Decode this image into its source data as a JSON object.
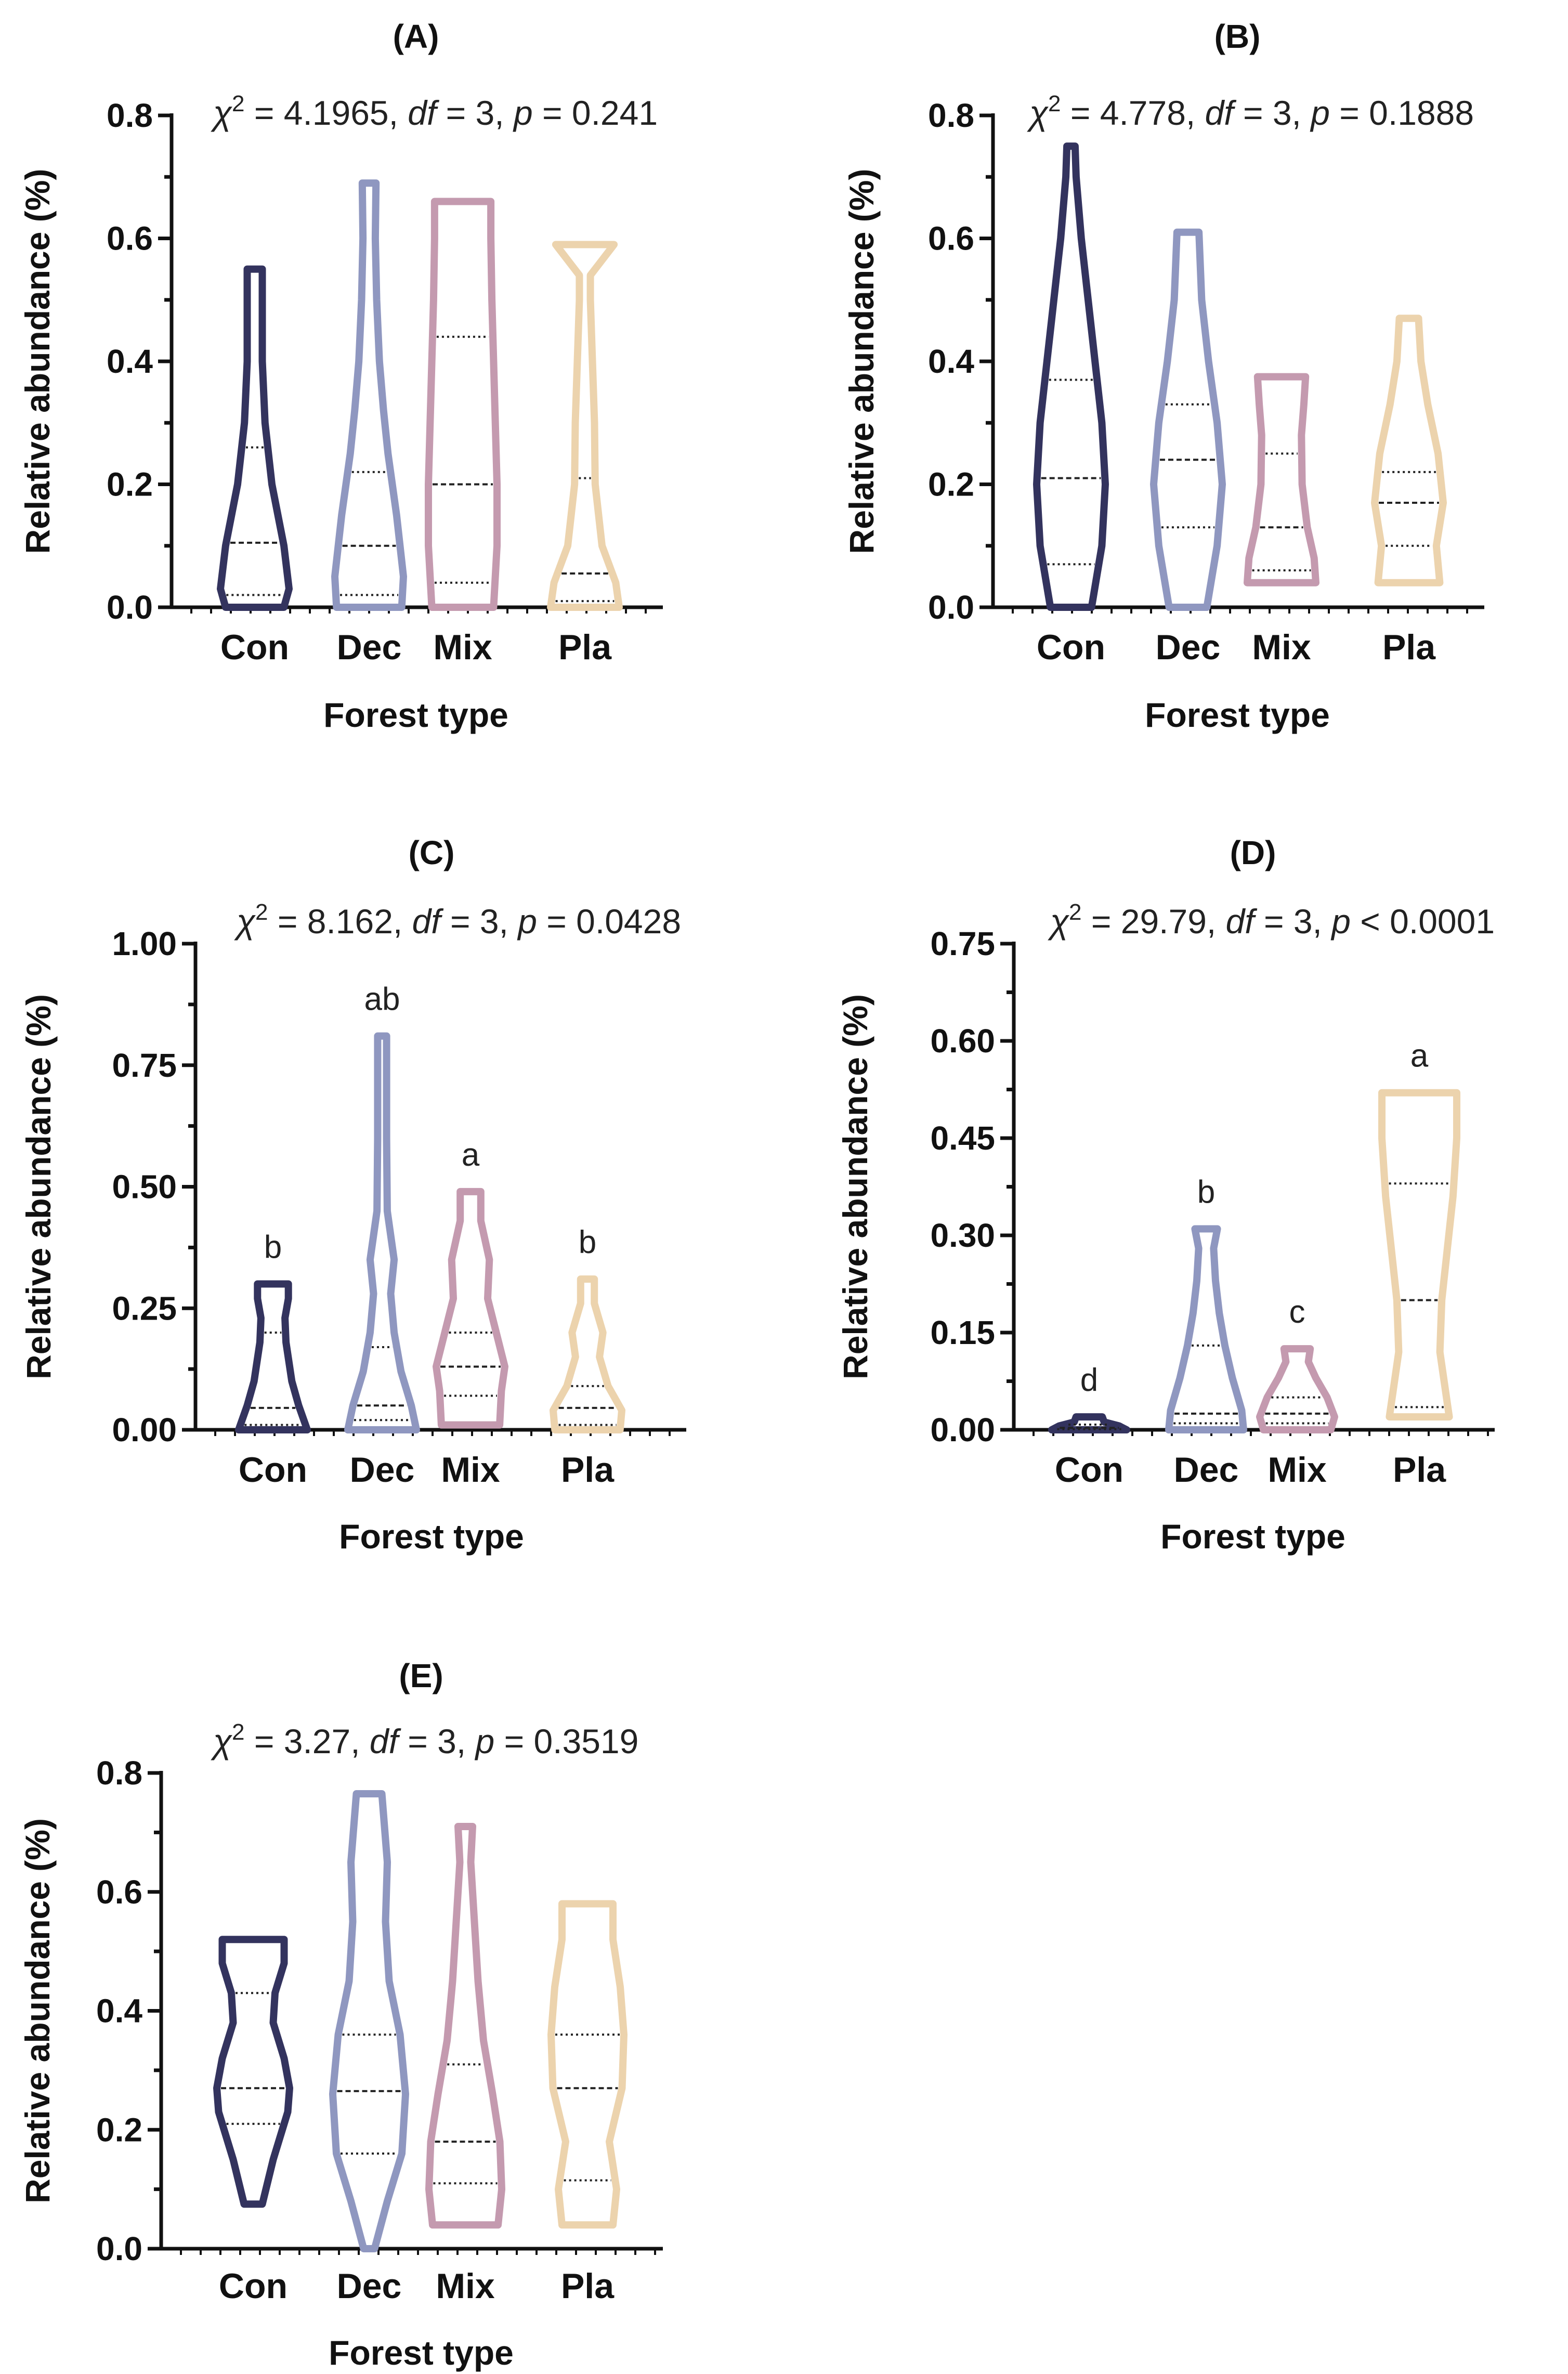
{
  "chart_data": [
    {
      "type": "violin",
      "panel": "(A)",
      "stat": {
        "chi": "χ",
        "chi_sup": "2",
        "chi_val": " = 4.1965, ",
        "df": "df",
        "df_val": " = 3, ",
        "p": "p",
        "p_val": " = 0.241"
      },
      "ylabel": "Relative abundance (%)",
      "xlabel": "Forest type",
      "ylim": [
        0,
        0.8
      ],
      "yticks": [
        "0.0",
        "0.2",
        "0.4",
        "0.6",
        "0.8"
      ],
      "categories": [
        "Con",
        "Dec",
        "Mix",
        "Pla"
      ],
      "series": [
        {
          "name": "Con",
          "min": 0.0,
          "max": 0.55,
          "q1": 0.02,
          "median": 0.105,
          "q3": 0.26,
          "shape": [
            [
              0.0,
              0.85
            ],
            [
              0.03,
              1.0
            ],
            [
              0.1,
              0.85
            ],
            [
              0.2,
              0.5
            ],
            [
              0.3,
              0.3
            ],
            [
              0.4,
              0.22
            ],
            [
              0.5,
              0.22
            ],
            [
              0.55,
              0.22
            ]
          ],
          "letter": ""
        },
        {
          "name": "Dec",
          "min": 0.0,
          "max": 0.69,
          "q1": 0.02,
          "median": 0.1,
          "q3": 0.22,
          "shape": [
            [
              0.0,
              0.95
            ],
            [
              0.05,
              1.0
            ],
            [
              0.15,
              0.8
            ],
            [
              0.25,
              0.55
            ],
            [
              0.32,
              0.42
            ],
            [
              0.4,
              0.3
            ],
            [
              0.5,
              0.22
            ],
            [
              0.6,
              0.18
            ],
            [
              0.69,
              0.2
            ]
          ],
          "letter": ""
        },
        {
          "name": "Mix",
          "min": 0.0,
          "max": 0.66,
          "q1": 0.04,
          "median": 0.2,
          "q3": 0.44,
          "shape": [
            [
              0.0,
              0.9
            ],
            [
              0.1,
              1.0
            ],
            [
              0.2,
              1.0
            ],
            [
              0.3,
              0.95
            ],
            [
              0.4,
              0.9
            ],
            [
              0.5,
              0.85
            ],
            [
              0.6,
              0.82
            ],
            [
              0.66,
              0.82
            ]
          ],
          "letter": ""
        },
        {
          "name": "Pla",
          "min": 0.0,
          "max": 0.59,
          "q1": 0.01,
          "median": 0.055,
          "q3": 0.21,
          "shape": [
            [
              0.0,
              1.0
            ],
            [
              0.04,
              0.9
            ],
            [
              0.1,
              0.5
            ],
            [
              0.2,
              0.3
            ],
            [
              0.3,
              0.28
            ],
            [
              0.4,
              0.22
            ],
            [
              0.5,
              0.16
            ],
            [
              0.54,
              0.16
            ],
            [
              0.59,
              0.85
            ]
          ],
          "letter": ""
        }
      ]
    },
    {
      "type": "violin",
      "panel": "(B)",
      "stat": {
        "chi": "χ",
        "chi_sup": "2",
        "chi_val": " = 4.778, ",
        "df": "df",
        "df_val": " = 3, ",
        "p": "p",
        "p_val": " = 0.1888"
      },
      "ylabel": "Relative abundance (%)",
      "xlabel": "Forest type",
      "ylim": [
        0,
        0.8
      ],
      "yticks": [
        "0.0",
        "0.2",
        "0.4",
        "0.6",
        "0.8"
      ],
      "categories": [
        "Con",
        "Dec",
        "Mix",
        "Pla"
      ],
      "series": [
        {
          "name": "Con",
          "min": 0.0,
          "max": 0.75,
          "q1": 0.07,
          "median": 0.21,
          "q3": 0.37,
          "shape": [
            [
              0.0,
              0.6
            ],
            [
              0.1,
              0.9
            ],
            [
              0.2,
              1.0
            ],
            [
              0.3,
              0.9
            ],
            [
              0.4,
              0.7
            ],
            [
              0.5,
              0.5
            ],
            [
              0.6,
              0.3
            ],
            [
              0.7,
              0.15
            ],
            [
              0.75,
              0.12
            ]
          ],
          "letter": ""
        },
        {
          "name": "Dec",
          "min": 0.0,
          "max": 0.61,
          "q1": 0.13,
          "median": 0.24,
          "q3": 0.33,
          "shape": [
            [
              0.0,
              0.55
            ],
            [
              0.1,
              0.85
            ],
            [
              0.2,
              1.0
            ],
            [
              0.3,
              0.85
            ],
            [
              0.4,
              0.6
            ],
            [
              0.5,
              0.4
            ],
            [
              0.61,
              0.32
            ]
          ],
          "letter": ""
        },
        {
          "name": "Mix",
          "min": 0.04,
          "max": 0.375,
          "q1": 0.06,
          "median": 0.13,
          "q3": 0.25,
          "shape": [
            [
              0.04,
              1.0
            ],
            [
              0.08,
              0.95
            ],
            [
              0.13,
              0.75
            ],
            [
              0.2,
              0.6
            ],
            [
              0.28,
              0.58
            ],
            [
              0.33,
              0.65
            ],
            [
              0.375,
              0.7
            ]
          ],
          "letter": ""
        },
        {
          "name": "Pla",
          "min": 0.04,
          "max": 0.47,
          "q1": 0.1,
          "median": 0.17,
          "q3": 0.22,
          "shape": [
            [
              0.04,
              0.9
            ],
            [
              0.1,
              0.8
            ],
            [
              0.17,
              1.0
            ],
            [
              0.25,
              0.85
            ],
            [
              0.33,
              0.55
            ],
            [
              0.4,
              0.35
            ],
            [
              0.47,
              0.28
            ]
          ],
          "letter": ""
        }
      ]
    },
    {
      "type": "violin",
      "panel": "(C)",
      "stat": {
        "chi": "χ",
        "chi_sup": "2",
        "chi_val": " = 8.162, ",
        "df": "df",
        "df_val": " = 3, ",
        "p": "p",
        "p_val": " = 0.0428"
      },
      "ylabel": "Relative abundance (%)",
      "xlabel": "Forest type",
      "ylim": [
        0,
        1.0
      ],
      "yticks": [
        "0.00",
        "0.25",
        "0.50",
        "0.75",
        "1.00"
      ],
      "categories": [
        "Con",
        "Dec",
        "Mix",
        "Pla"
      ],
      "series": [
        {
          "name": "Con",
          "min": 0.0,
          "max": 0.3,
          "q1": 0.01,
          "median": 0.045,
          "q3": 0.2,
          "shape": [
            [
              0.0,
              1.0
            ],
            [
              0.05,
              0.75
            ],
            [
              0.1,
              0.55
            ],
            [
              0.18,
              0.38
            ],
            [
              0.23,
              0.35
            ],
            [
              0.27,
              0.45
            ],
            [
              0.3,
              0.45
            ]
          ],
          "letter": "b"
        },
        {
          "name": "Dec",
          "min": 0.0,
          "max": 0.81,
          "q1": 0.02,
          "median": 0.05,
          "q3": 0.17,
          "shape": [
            [
              0.0,
              1.0
            ],
            [
              0.05,
              0.85
            ],
            [
              0.12,
              0.55
            ],
            [
              0.2,
              0.35
            ],
            [
              0.28,
              0.25
            ],
            [
              0.35,
              0.35
            ],
            [
              0.45,
              0.15
            ],
            [
              0.6,
              0.13
            ],
            [
              0.81,
              0.13
            ]
          ],
          "letter": "ab"
        },
        {
          "name": "Mix",
          "min": 0.01,
          "max": 0.49,
          "q1": 0.07,
          "median": 0.13,
          "q3": 0.2,
          "shape": [
            [
              0.01,
              0.85
            ],
            [
              0.08,
              0.9
            ],
            [
              0.13,
              1.0
            ],
            [
              0.2,
              0.75
            ],
            [
              0.27,
              0.5
            ],
            [
              0.35,
              0.55
            ],
            [
              0.43,
              0.3
            ],
            [
              0.49,
              0.3
            ]
          ],
          "letter": "a"
        },
        {
          "name": "Pla",
          "min": 0.0,
          "max": 0.31,
          "q1": 0.01,
          "median": 0.045,
          "q3": 0.09,
          "shape": [
            [
              0.0,
              0.95
            ],
            [
              0.04,
              1.0
            ],
            [
              0.09,
              0.6
            ],
            [
              0.15,
              0.35
            ],
            [
              0.2,
              0.45
            ],
            [
              0.26,
              0.2
            ],
            [
              0.31,
              0.2
            ]
          ],
          "letter": "b"
        }
      ]
    },
    {
      "type": "violin",
      "panel": "(D)",
      "stat": {
        "chi": "χ",
        "chi_sup": "2",
        "chi_val": " = 29.79, ",
        "df": "df",
        "df_val": " = 3, ",
        "p": "p",
        "p_val": " < 0.0001"
      },
      "ylabel": "Relative abundance (%)",
      "xlabel": "Forest type",
      "ylim": [
        0,
        0.75
      ],
      "yticks": [
        "0.00",
        "0.15",
        "0.30",
        "0.45",
        "0.60",
        "0.75"
      ],
      "categories": [
        "Con",
        "Dec",
        "Mix",
        "Pla"
      ],
      "series": [
        {
          "name": "Con",
          "min": 0.0,
          "max": 0.02,
          "q1": 0.001,
          "median": 0.003,
          "q3": 0.008,
          "shape": [
            [
              0.0,
              1.0
            ],
            [
              0.006,
              0.8
            ],
            [
              0.012,
              0.4
            ],
            [
              0.02,
              0.35
            ]
          ],
          "letter": "d"
        },
        {
          "name": "Dec",
          "min": 0.0,
          "max": 0.31,
          "q1": 0.01,
          "median": 0.025,
          "q3": 0.13,
          "shape": [
            [
              0.0,
              1.0
            ],
            [
              0.03,
              0.95
            ],
            [
              0.08,
              0.7
            ],
            [
              0.13,
              0.5
            ],
            [
              0.18,
              0.35
            ],
            [
              0.23,
              0.25
            ],
            [
              0.28,
              0.2
            ],
            [
              0.31,
              0.3
            ]
          ],
          "letter": "b"
        },
        {
          "name": "Mix",
          "min": 0.0,
          "max": 0.125,
          "q1": 0.01,
          "median": 0.025,
          "q3": 0.05,
          "shape": [
            [
              0.0,
              0.9
            ],
            [
              0.02,
              1.0
            ],
            [
              0.05,
              0.8
            ],
            [
              0.08,
              0.5
            ],
            [
              0.105,
              0.3
            ],
            [
              0.125,
              0.35
            ]
          ],
          "letter": "c"
        },
        {
          "name": "Pla",
          "min": 0.02,
          "max": 0.52,
          "q1": 0.035,
          "median": 0.2,
          "q3": 0.38,
          "shape": [
            [
              0.02,
              0.8
            ],
            [
              0.06,
              0.7
            ],
            [
              0.12,
              0.55
            ],
            [
              0.2,
              0.6
            ],
            [
              0.28,
              0.75
            ],
            [
              0.36,
              0.9
            ],
            [
              0.45,
              1.0
            ],
            [
              0.52,
              1.0
            ]
          ],
          "letter": "a"
        }
      ]
    },
    {
      "type": "violin",
      "panel": "(E)",
      "stat": {
        "chi": "χ",
        "chi_sup": "2",
        "chi_val": " = 3.27, ",
        "df": "df",
        "df_val": " = 3, ",
        "p": "p",
        "p_val": " = 0.3519"
      },
      "ylabel": "Relative abundance (%)",
      "xlabel": "Forest type",
      "ylim": [
        0,
        0.8
      ],
      "yticks": [
        "0.0",
        "0.2",
        "0.4",
        "0.6",
        "0.8"
      ],
      "categories": [
        "Con",
        "Dec",
        "Mix",
        "Pla"
      ],
      "series": [
        {
          "name": "Con",
          "min": 0.075,
          "max": 0.52,
          "q1": 0.21,
          "median": 0.27,
          "q3": 0.43,
          "shape": [
            [
              0.075,
              0.25
            ],
            [
              0.15,
              0.55
            ],
            [
              0.23,
              0.95
            ],
            [
              0.27,
              1.0
            ],
            [
              0.32,
              0.85
            ],
            [
              0.38,
              0.55
            ],
            [
              0.43,
              0.6
            ],
            [
              0.48,
              0.85
            ],
            [
              0.52,
              0.85
            ]
          ],
          "letter": ""
        },
        {
          "name": "Dec",
          "min": 0.0,
          "max": 0.765,
          "q1": 0.16,
          "median": 0.265,
          "q3": 0.36,
          "shape": [
            [
              0.0,
              0.15
            ],
            [
              0.08,
              0.5
            ],
            [
              0.16,
              0.9
            ],
            [
              0.26,
              1.0
            ],
            [
              0.36,
              0.85
            ],
            [
              0.45,
              0.55
            ],
            [
              0.55,
              0.45
            ],
            [
              0.65,
              0.5
            ],
            [
              0.765,
              0.35
            ]
          ],
          "letter": ""
        },
        {
          "name": "Mix",
          "min": 0.04,
          "max": 0.71,
          "q1": 0.11,
          "median": 0.18,
          "q3": 0.31,
          "shape": [
            [
              0.04,
              0.9
            ],
            [
              0.1,
              1.0
            ],
            [
              0.18,
              0.95
            ],
            [
              0.26,
              0.75
            ],
            [
              0.35,
              0.5
            ],
            [
              0.45,
              0.35
            ],
            [
              0.55,
              0.25
            ],
            [
              0.65,
              0.15
            ],
            [
              0.71,
              0.2
            ]
          ],
          "letter": ""
        },
        {
          "name": "Pla",
          "min": 0.04,
          "max": 0.58,
          "q1": 0.115,
          "median": 0.27,
          "q3": 0.36,
          "shape": [
            [
              0.04,
              0.7
            ],
            [
              0.1,
              0.8
            ],
            [
              0.18,
              0.6
            ],
            [
              0.27,
              0.95
            ],
            [
              0.36,
              1.0
            ],
            [
              0.44,
              0.9
            ],
            [
              0.52,
              0.7
            ],
            [
              0.58,
              0.7
            ]
          ],
          "letter": ""
        }
      ]
    }
  ],
  "colors": {
    "Con": "#33335e",
    "Dec": "#8f97c0",
    "Mix": "#c49aaf",
    "Pla": "#ecd3ad"
  }
}
